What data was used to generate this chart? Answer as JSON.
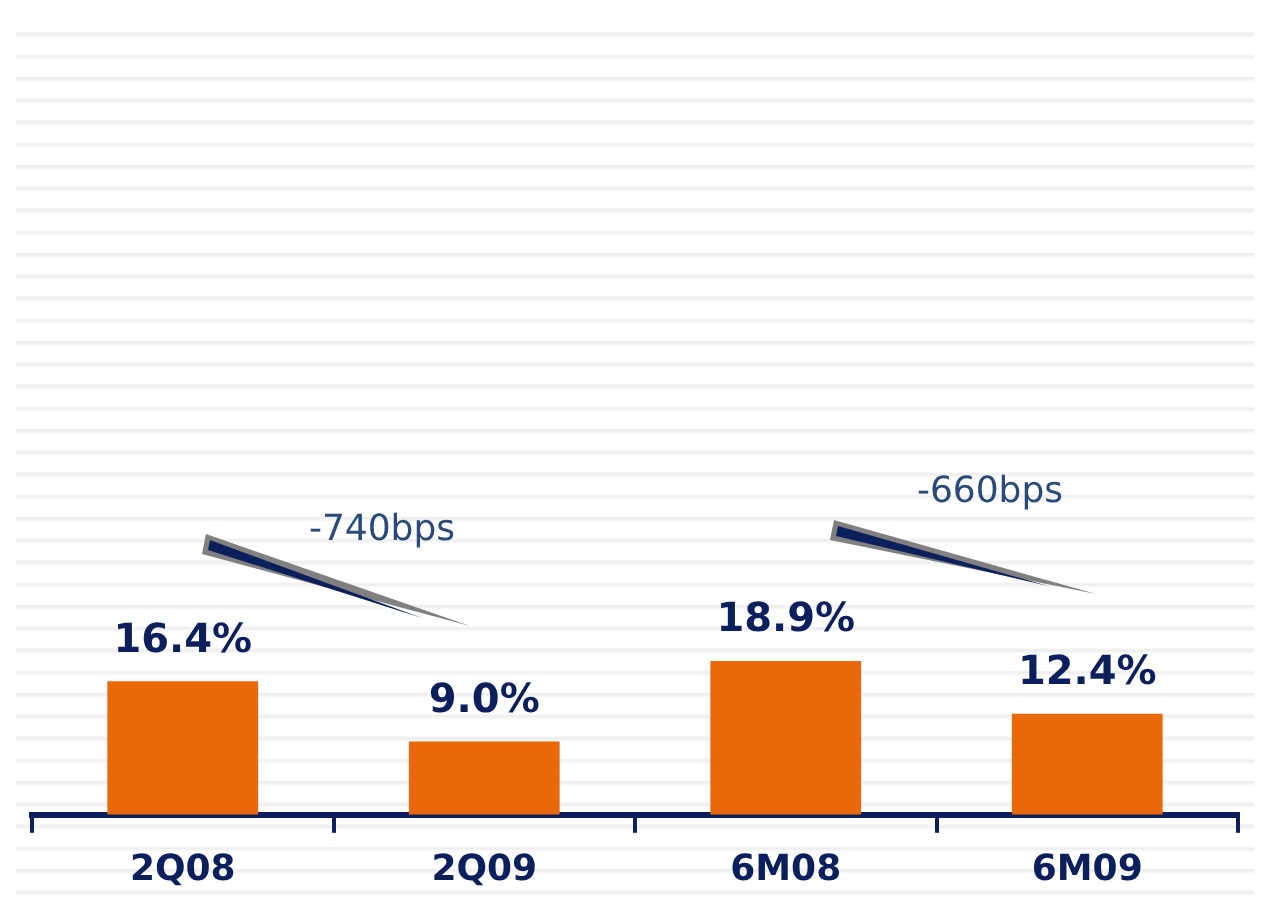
{
  "chart_data": {
    "type": "bar",
    "categories": [
      "2Q08",
      "2Q09",
      "6M08",
      "6M09"
    ],
    "values": [
      16.4,
      9.0,
      18.9,
      12.4
    ],
    "color": "#e8680a",
    "data_labels": true,
    "value_labels": [
      "16.4%",
      "9.0%",
      "18.9%",
      "12.4%"
    ],
    "grid": false,
    "legend": false,
    "annotations": [
      "-740bps",
      "-660bps"
    ]
  }
}
